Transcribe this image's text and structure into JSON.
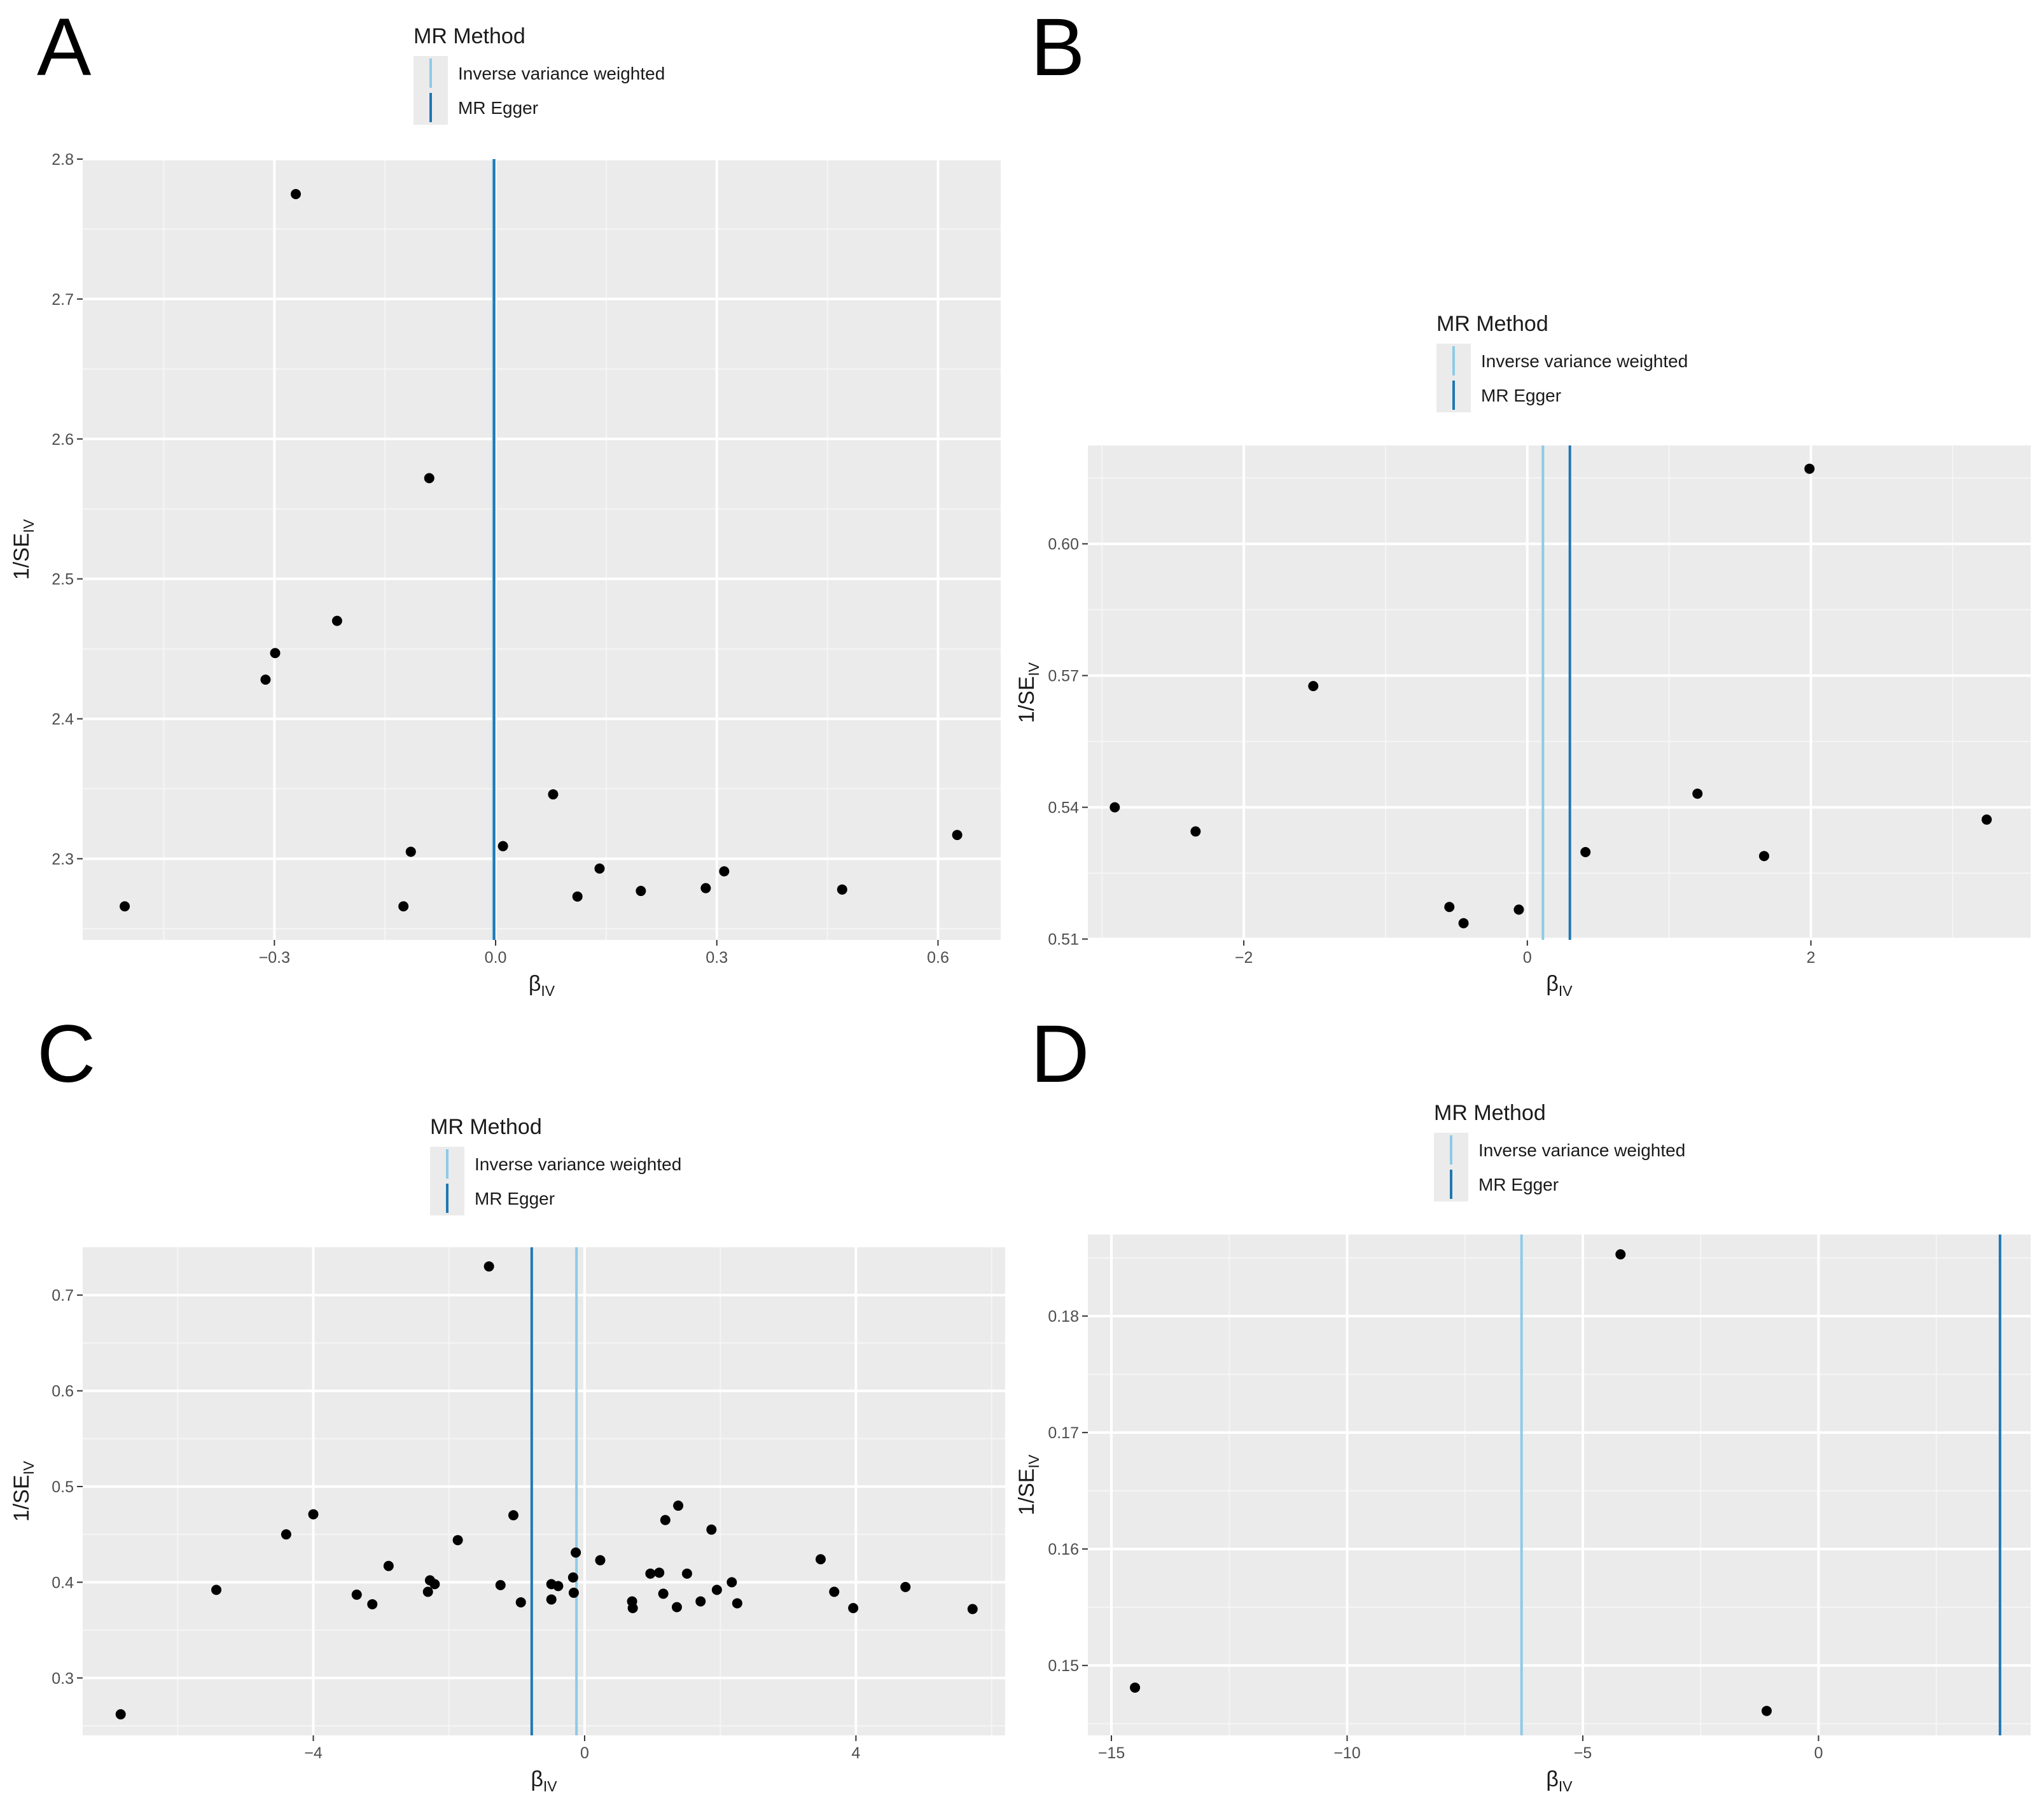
{
  "figure": {
    "panels": [
      "A",
      "B",
      "C",
      "D"
    ]
  },
  "chart_data": [
    {
      "panel": "A",
      "type": "scatter",
      "title": "",
      "xlabel": "β",
      "xlabel_sub": "IV",
      "ylabel": "1/SE",
      "ylabel_sub": "IV",
      "xlim": [
        -0.56,
        0.685
      ],
      "ylim": [
        2.242,
        2.8
      ],
      "xticks": [
        -0.3,
        0.0,
        0.3,
        0.6
      ],
      "xtick_labels": [
        "−0.3",
        "0.0",
        "0.3",
        "0.6"
      ],
      "yticks": [
        2.3,
        2.4,
        2.5,
        2.6,
        2.7,
        2.8
      ],
      "ytick_labels": [
        "2.3",
        "2.4",
        "2.5",
        "2.6",
        "2.7",
        "2.8"
      ],
      "legend": {
        "title": "MR Method",
        "placement": "top",
        "entries": [
          {
            "name": "Inverse variance weighted",
            "color": "#8ecae6"
          },
          {
            "name": "MR Egger",
            "color": "#1f77b4"
          }
        ]
      },
      "lines": [
        {
          "name": "Inverse variance weighted",
          "x": -0.003,
          "color": "#8ecae6"
        },
        {
          "name": "MR Egger",
          "x": -0.002,
          "color": "#1f77b4"
        }
      ],
      "points": [
        {
          "x": -0.503,
          "y": 2.266
        },
        {
          "x": -0.271,
          "y": 2.775
        },
        {
          "x": -0.299,
          "y": 2.447
        },
        {
          "x": -0.312,
          "y": 2.428
        },
        {
          "x": -0.215,
          "y": 2.47
        },
        {
          "x": -0.09,
          "y": 2.572
        },
        {
          "x": -0.115,
          "y": 2.305
        },
        {
          "x": -0.125,
          "y": 2.266
        },
        {
          "x": 0.01,
          "y": 2.309
        },
        {
          "x": 0.078,
          "y": 2.346
        },
        {
          "x": 0.111,
          "y": 2.273
        },
        {
          "x": 0.141,
          "y": 2.293
        },
        {
          "x": 0.197,
          "y": 2.277
        },
        {
          "x": 0.285,
          "y": 2.279
        },
        {
          "x": 0.31,
          "y": 2.291
        },
        {
          "x": 0.47,
          "y": 2.278
        },
        {
          "x": 0.626,
          "y": 2.317
        }
      ]
    },
    {
      "panel": "B",
      "type": "scatter",
      "title": "",
      "xlabel": "β",
      "xlabel_sub": "IV",
      "ylabel": "1/SE",
      "ylabel_sub": "IV",
      "xlim": [
        -3.1,
        3.55
      ],
      "ylim": [
        0.5098,
        0.6224
      ],
      "xticks": [
        -2,
        0,
        2
      ],
      "xtick_labels": [
        "−2",
        "0",
        "2"
      ],
      "yticks": [
        0.51,
        0.54,
        0.57,
        0.6
      ],
      "ytick_labels": [
        "0.51",
        "0.54",
        "0.57",
        "0.60"
      ],
      "legend": {
        "title": "MR Method",
        "placement": "top",
        "entries": [
          {
            "name": "Inverse variance weighted",
            "color": "#8ecae6"
          },
          {
            "name": "MR Egger",
            "color": "#1f77b4"
          }
        ]
      },
      "lines": [
        {
          "name": "Inverse variance weighted",
          "x": 0.11,
          "color": "#8ecae6"
        },
        {
          "name": "MR Egger",
          "x": 0.3,
          "color": "#1f77b4"
        }
      ],
      "points": [
        {
          "x": -2.91,
          "y": 0.54
        },
        {
          "x": -2.34,
          "y": 0.5345
        },
        {
          "x": -1.51,
          "y": 0.5676
        },
        {
          "x": -0.55,
          "y": 0.5173
        },
        {
          "x": -0.45,
          "y": 0.5136
        },
        {
          "x": -0.06,
          "y": 0.5167
        },
        {
          "x": 0.41,
          "y": 0.5298
        },
        {
          "x": 1.2,
          "y": 0.5431
        },
        {
          "x": 1.67,
          "y": 0.5289
        },
        {
          "x": 1.99,
          "y": 0.6171
        },
        {
          "x": 3.24,
          "y": 0.5372
        }
      ]
    },
    {
      "panel": "C",
      "type": "scatter",
      "title": "",
      "xlabel": "β",
      "xlabel_sub": "IV",
      "ylabel": "1/SE",
      "ylabel_sub": "IV",
      "xlim": [
        -7.4,
        6.2
      ],
      "ylim": [
        0.24,
        0.75
      ],
      "xticks": [
        -4,
        0,
        4
      ],
      "xtick_labels": [
        "−4",
        "0",
        "4"
      ],
      "yticks": [
        0.3,
        0.4,
        0.5,
        0.6,
        0.7
      ],
      "ytick_labels": [
        "0.3",
        "0.4",
        "0.5",
        "0.6",
        "0.7"
      ],
      "legend": {
        "title": "MR Method",
        "placement": "top",
        "entries": [
          {
            "name": "Inverse variance weighted",
            "color": "#8ecae6"
          },
          {
            "name": "MR Egger",
            "color": "#1f77b4"
          }
        ]
      },
      "lines": [
        {
          "name": "Inverse variance weighted",
          "x": -0.12,
          "color": "#8ecae6"
        },
        {
          "name": "MR Egger",
          "x": -0.78,
          "color": "#1f77b4"
        }
      ],
      "points": [
        {
          "x": -6.84,
          "y": 0.262
        },
        {
          "x": -5.43,
          "y": 0.392
        },
        {
          "x": -4.4,
          "y": 0.45
        },
        {
          "x": -4.0,
          "y": 0.471
        },
        {
          "x": -3.36,
          "y": 0.387
        },
        {
          "x": -3.13,
          "y": 0.377
        },
        {
          "x": -2.89,
          "y": 0.417
        },
        {
          "x": -2.31,
          "y": 0.39
        },
        {
          "x": -2.28,
          "y": 0.402
        },
        {
          "x": -2.21,
          "y": 0.398
        },
        {
          "x": -1.87,
          "y": 0.444
        },
        {
          "x": -1.41,
          "y": 0.73
        },
        {
          "x": -1.24,
          "y": 0.397
        },
        {
          "x": -1.05,
          "y": 0.47
        },
        {
          "x": -0.94,
          "y": 0.379
        },
        {
          "x": -0.49,
          "y": 0.382
        },
        {
          "x": -0.49,
          "y": 0.398
        },
        {
          "x": -0.39,
          "y": 0.396
        },
        {
          "x": -0.17,
          "y": 0.405
        },
        {
          "x": -0.13,
          "y": 0.431
        },
        {
          "x": -0.16,
          "y": 0.389
        },
        {
          "x": 0.23,
          "y": 0.423
        },
        {
          "x": 0.7,
          "y": 0.38
        },
        {
          "x": 0.71,
          "y": 0.373
        },
        {
          "x": 0.97,
          "y": 0.409
        },
        {
          "x": 1.1,
          "y": 0.41
        },
        {
          "x": 1.16,
          "y": 0.388
        },
        {
          "x": 1.19,
          "y": 0.465
        },
        {
          "x": 1.36,
          "y": 0.374
        },
        {
          "x": 1.38,
          "y": 0.48
        },
        {
          "x": 1.51,
          "y": 0.409
        },
        {
          "x": 1.71,
          "y": 0.38
        },
        {
          "x": 1.87,
          "y": 0.455
        },
        {
          "x": 1.95,
          "y": 0.392
        },
        {
          "x": 2.17,
          "y": 0.4
        },
        {
          "x": 2.25,
          "y": 0.378
        },
        {
          "x": 3.48,
          "y": 0.424
        },
        {
          "x": 3.68,
          "y": 0.39
        },
        {
          "x": 3.96,
          "y": 0.373
        },
        {
          "x": 4.73,
          "y": 0.395
        },
        {
          "x": 5.72,
          "y": 0.372
        }
      ]
    },
    {
      "panel": "D",
      "type": "scatter",
      "title": "",
      "xlabel": "β",
      "xlabel_sub": "IV",
      "ylabel": "1/SE",
      "ylabel_sub": "IV",
      "xlim": [
        -15.5,
        4.5
      ],
      "ylim": [
        0.144,
        0.187
      ],
      "xticks": [
        -15,
        -10,
        -5,
        0
      ],
      "xtick_labels": [
        "−15",
        "−10",
        "−5",
        "0"
      ],
      "yticks": [
        0.15,
        0.16,
        0.17,
        0.18
      ],
      "ytick_labels": [
        "0.15",
        "0.16",
        "0.17",
        "0.18"
      ],
      "legend": {
        "title": "MR Method",
        "placement": "top",
        "entries": [
          {
            "name": "Inverse variance weighted",
            "color": "#8ecae6"
          },
          {
            "name": "MR Egger",
            "color": "#1f77b4"
          }
        ]
      },
      "lines": [
        {
          "name": "Inverse variance weighted",
          "x": -6.3,
          "color": "#8ecae6"
        },
        {
          "name": "MR Egger",
          "x": 3.85,
          "color": "#1f77b4"
        }
      ],
      "points": [
        {
          "x": -14.5,
          "y": 0.1481
        },
        {
          "x": -4.2,
          "y": 0.1853
        },
        {
          "x": -1.1,
          "y": 0.1461
        }
      ]
    }
  ]
}
